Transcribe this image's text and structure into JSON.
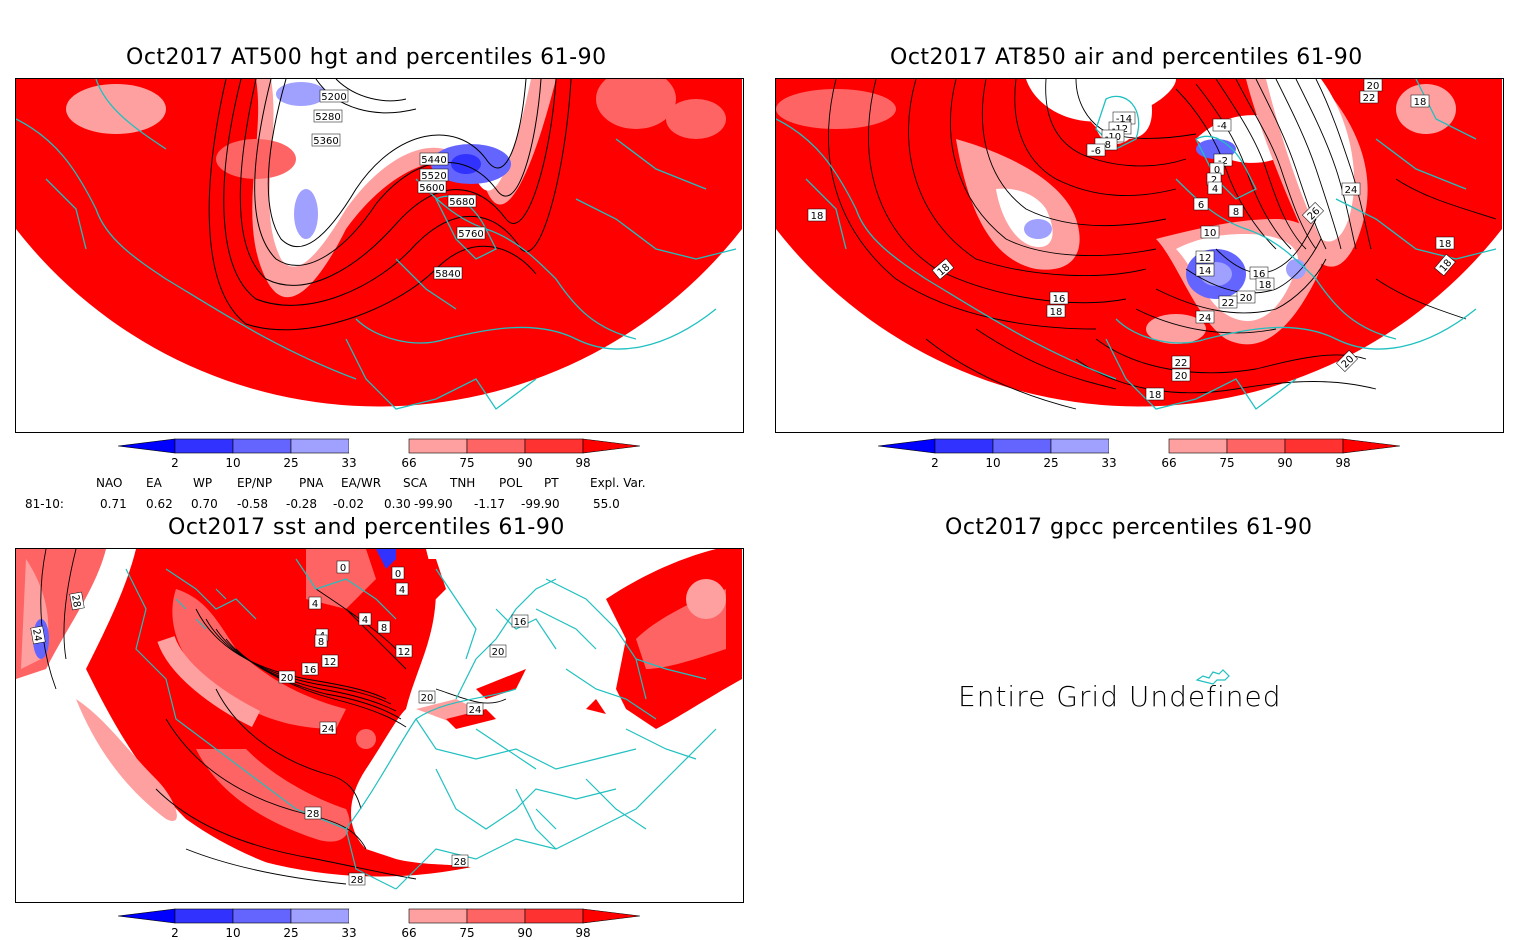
{
  "panels": {
    "hgt": {
      "title": "Oct2017 AT500 hgt and percentiles 61-90",
      "contour_labels": [
        "5200",
        "5280",
        "5360",
        "5440",
        "5520",
        "5600",
        "5680",
        "5760",
        "5840"
      ]
    },
    "air": {
      "title": "Oct2017 AT850 air and percentiles 61-90",
      "contour_labels": [
        "-14",
        "-12",
        "-10",
        "-8",
        "-6",
        "-4",
        "-2",
        "0",
        "2",
        "4",
        "6",
        "8",
        "10",
        "12",
        "14",
        "16",
        "18",
        "20",
        "22",
        "24",
        "26",
        "18",
        "18",
        "18",
        "18",
        "18",
        "16",
        "18",
        "18",
        "22",
        "20",
        "24",
        "22",
        "20",
        "20"
      ]
    },
    "sst": {
      "title": "Oct2017 sst and percentiles 61-90",
      "contour_labels": [
        "0",
        "0",
        "4",
        "4",
        "4",
        "4",
        "8",
        "8",
        "12",
        "12",
        "16",
        "16",
        "20",
        "20",
        "20",
        "24",
        "24",
        "24",
        "28",
        "28",
        "28",
        "28"
      ]
    },
    "gpcc": {
      "title": "Oct2017 gpcc percentiles 61-90",
      "message": "Entire Grid Undefined"
    }
  },
  "colorbar": {
    "ticks": [
      "2",
      "10",
      "25",
      "33",
      "66",
      "75",
      "90",
      "98"
    ],
    "colors": {
      "c0": "#0000ff",
      "c1": "#3232ff",
      "c2": "#6464ff",
      "c3": "#a0a0ff",
      "c4": "#ffffff",
      "c5": "#ffa0a0",
      "c6": "#ff6464",
      "c7": "#ff3232",
      "c8": "#ff0000"
    }
  },
  "indices": {
    "headers": [
      "NAO",
      "EA",
      "WP",
      "EP/NP",
      "PNA",
      "EA/WR",
      "SCA",
      "TNH",
      "POL",
      "PT",
      "Expl. Var."
    ],
    "row_label": "81-10:",
    "values": [
      "0.71",
      "0.62",
      "0.70",
      "-0.58",
      "-0.28",
      "-0.02",
      "0.30",
      "-99.90",
      "-1.17",
      "-99.90",
      "55.0"
    ]
  },
  "colors": {
    "coast": "#20c0c0",
    "contour": "#000000",
    "red": "#ff0000"
  }
}
